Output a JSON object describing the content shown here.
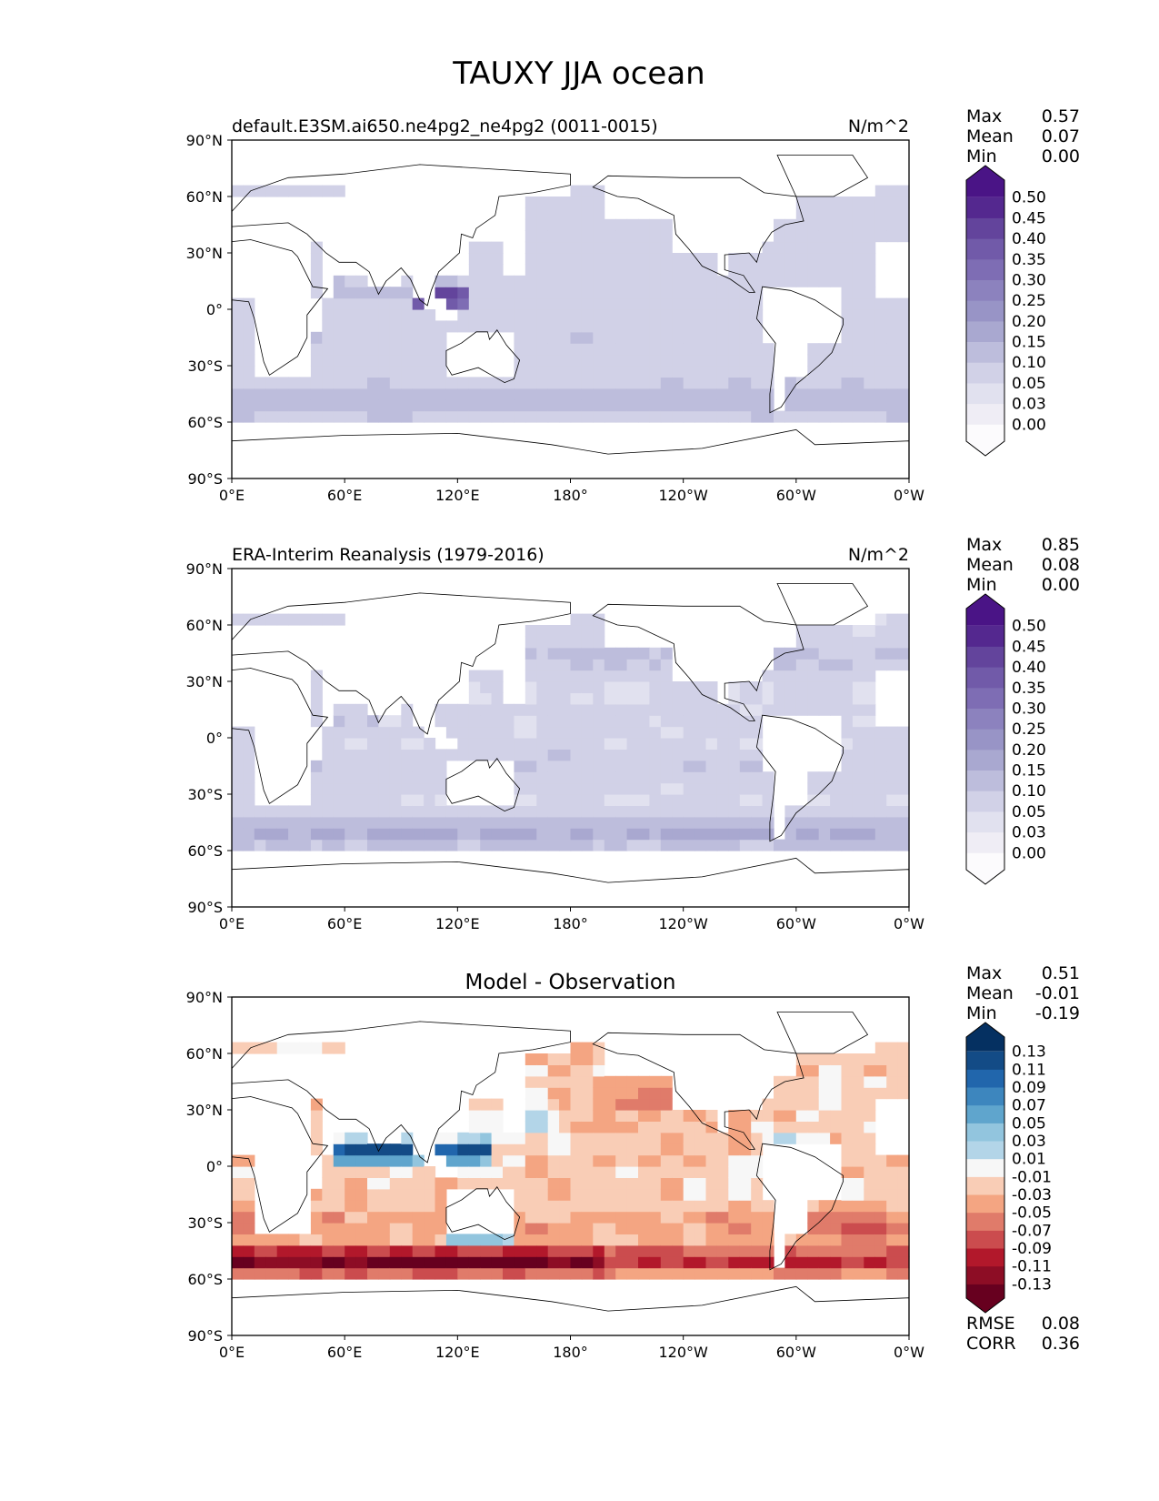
{
  "figure_title": "TAUXY JJA ocean",
  "colors": {
    "seq": [
      "#fcfbfd",
      "#efedf5",
      "#e1e1ef",
      "#d1d1e7",
      "#bdbddc",
      "#a9a8d0",
      "#9894c6",
      "#8c82be",
      "#7e6db4",
      "#715aa9",
      "#63449c",
      "#54288f",
      "#4a1486",
      "#3f007d"
    ],
    "div": [
      "#67001f",
      "#8d0d25",
      "#b2182b",
      "#cb4c4e",
      "#e07b6a",
      "#f4a582",
      "#f9cdb6",
      "#fbe6da",
      "#f7f7f7",
      "#d7e8f2",
      "#b3d5e8",
      "#92c5de",
      "#5fa5cd",
      "#3d86be",
      "#2166ac",
      "#134b86",
      "#053061"
    ],
    "land_line": "#000000"
  },
  "chart_data": [
    {
      "type": "heatmap",
      "panel": "model",
      "left_title": "default.E3SM.ai650.ne4pg2_ne4pg2 (0011-0015)",
      "right_title": "N/m^2",
      "stats": [
        {
          "label": "Max",
          "value": "0.57"
        },
        {
          "label": "Mean",
          "value": "0.07"
        },
        {
          "label": "Min",
          "value": "0.00"
        }
      ],
      "colorbar_levels": [
        "0.00",
        "0.03",
        "0.05",
        "0.10",
        "0.15",
        "0.20",
        "0.25",
        "0.30",
        "0.35",
        "0.40",
        "0.45",
        "0.50"
      ],
      "palette": "seq",
      "xticks": [
        "0°E",
        "60°E",
        "120°E",
        "180°",
        "120°W",
        "60°W",
        "0°W"
      ],
      "yticks": [
        "90°N",
        "60°N",
        "30°N",
        "0°",
        "30°S",
        "60°S",
        "90°S"
      ],
      "xlim": [
        0,
        360
      ],
      "ylim": [
        -90,
        90
      ]
    },
    {
      "type": "heatmap",
      "panel": "obs",
      "left_title": "ERA-Interim Reanalysis (1979-2016)",
      "right_title": "N/m^2",
      "stats": [
        {
          "label": "Max",
          "value": "0.85"
        },
        {
          "label": "Mean",
          "value": "0.08"
        },
        {
          "label": "Min",
          "value": "0.00"
        }
      ],
      "colorbar_levels": [
        "0.00",
        "0.03",
        "0.05",
        "0.10",
        "0.15",
        "0.20",
        "0.25",
        "0.30",
        "0.35",
        "0.40",
        "0.45",
        "0.50"
      ],
      "palette": "seq",
      "xticks": [
        "0°E",
        "60°E",
        "120°E",
        "180°",
        "120°W",
        "60°W",
        "0°W"
      ],
      "yticks": [
        "90°N",
        "60°N",
        "30°N",
        "0°",
        "30°S",
        "60°S",
        "90°S"
      ],
      "xlim": [
        0,
        360
      ],
      "ylim": [
        -90,
        90
      ]
    },
    {
      "type": "heatmap",
      "panel": "diff",
      "center_title": "Model - Observation",
      "stats": [
        {
          "label": "Max",
          "value": "0.51"
        },
        {
          "label": "Mean",
          "value": "-0.01"
        },
        {
          "label": "Min",
          "value": "-0.19"
        }
      ],
      "colorbar_levels": [
        "-0.13",
        "-0.11",
        "-0.09",
        "-0.07",
        "-0.05",
        "-0.03",
        "-0.01",
        "0.01",
        "0.03",
        "0.05",
        "0.07",
        "0.09",
        "0.11",
        "0.13"
      ],
      "palette": "div",
      "metrics": [
        {
          "label": "RMSE",
          "value": "0.08"
        },
        {
          "label": "CORR",
          "value": "0.36"
        }
      ],
      "xticks": [
        "0°E",
        "60°E",
        "120°E",
        "180°",
        "120°W",
        "60°W",
        "0°W"
      ],
      "yticks": [
        "90°N",
        "60°N",
        "30°N",
        "0°",
        "30°S",
        "60°S",
        "90°S"
      ],
      "xlim": [
        0,
        360
      ],
      "ylim": [
        -90,
        90
      ]
    }
  ]
}
